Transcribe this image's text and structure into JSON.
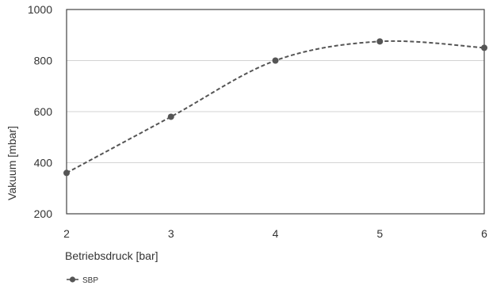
{
  "chart_data": {
    "type": "line",
    "x": [
      2,
      3,
      4,
      5,
      6
    ],
    "series": [
      {
        "name": "SBP",
        "values": [
          360,
          580,
          800,
          875,
          850
        ]
      }
    ],
    "xlabel": "Betriebsdruck [bar]",
    "ylabel": "Vakuum [mbar]",
    "xlim": [
      2,
      6
    ],
    "ylim": [
      200,
      1000
    ],
    "x_ticks": [
      "2",
      "3",
      "4",
      "5",
      "6"
    ],
    "y_ticks": [
      "200",
      "400",
      "600",
      "800",
      "1000"
    ],
    "grid": true,
    "legend": "bottom-left",
    "line_style": "dashed smooth",
    "colors": {
      "series": "#555555",
      "grid": "#d3d3d3",
      "frame": "#444444",
      "text": "#333333"
    }
  }
}
